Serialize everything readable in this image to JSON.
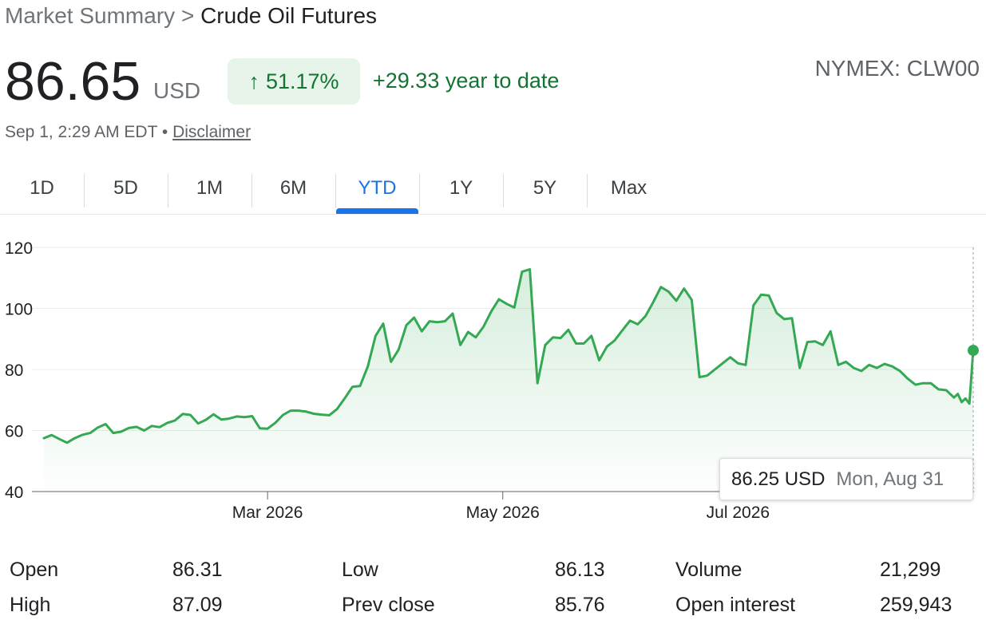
{
  "breadcrumb": {
    "parent": "Market Summary",
    "separator": ">",
    "current": "Crude Oil Futures"
  },
  "quote": {
    "price": "86.65",
    "currency": "USD",
    "change_arrow": "↑",
    "change_percent": "51.17%",
    "ytd_change": "+29.33 year to date",
    "exchange": "NYMEX: CLW00",
    "timestamp": "Sep 1, 2:29 AM EDT •",
    "disclaimer": "Disclaimer"
  },
  "colors": {
    "accent": "#1a73e8",
    "positive": "#137333",
    "line": "#34a853"
  },
  "tabs": [
    {
      "label": "1D",
      "active": false
    },
    {
      "label": "5D",
      "active": false
    },
    {
      "label": "1M",
      "active": false
    },
    {
      "label": "6M",
      "active": false
    },
    {
      "label": "YTD",
      "active": true
    },
    {
      "label": "1Y",
      "active": false
    },
    {
      "label": "5Y",
      "active": false
    },
    {
      "label": "Max",
      "active": false
    }
  ],
  "tooltip": {
    "price": "86.25 USD",
    "date": "Mon, Aug 31"
  },
  "stats": [
    [
      {
        "label": "Open",
        "value": "86.31"
      },
      {
        "label": "Low",
        "value": "86.13"
      },
      {
        "label": "Volume",
        "value": "21,299"
      }
    ],
    [
      {
        "label": "High",
        "value": "87.09"
      },
      {
        "label": "Prev close",
        "value": "85.76"
      },
      {
        "label": "Open interest",
        "value": "259,943"
      }
    ]
  ],
  "chart_data": {
    "type": "area",
    "ylim": [
      40,
      120
    ],
    "yticks": [
      40,
      60,
      80,
      100,
      120
    ],
    "xlim": [
      "2026-01-02",
      "2026-08-31"
    ],
    "xticks": [
      {
        "label": "Mar 2026",
        "date": "2026-03-01"
      },
      {
        "label": "May 2026",
        "date": "2026-05-01"
      },
      {
        "label": "Jul 2026",
        "date": "2026-07-01"
      }
    ],
    "series": [
      {
        "values": [
          [
            "2026-01-02",
            57.5
          ],
          [
            "2026-01-04",
            58.5
          ],
          [
            "2026-01-06",
            57.2
          ],
          [
            "2026-01-08",
            56
          ],
          [
            "2026-01-10",
            57.5
          ],
          [
            "2026-01-12",
            58.6
          ],
          [
            "2026-01-14",
            59.2
          ],
          [
            "2026-01-16",
            61
          ],
          [
            "2026-01-18",
            62.1
          ],
          [
            "2026-01-20",
            59.2
          ],
          [
            "2026-01-22",
            59.6
          ],
          [
            "2026-01-24",
            60.8
          ],
          [
            "2026-01-26",
            61.2
          ],
          [
            "2026-01-28",
            60
          ],
          [
            "2026-01-30",
            61.5
          ],
          [
            "2026-02-01",
            61.1
          ],
          [
            "2026-02-03",
            62.5
          ],
          [
            "2026-02-05",
            63.3
          ],
          [
            "2026-02-07",
            65.4
          ],
          [
            "2026-02-09",
            65.1
          ],
          [
            "2026-02-11",
            62.3
          ],
          [
            "2026-02-13",
            63.5
          ],
          [
            "2026-02-15",
            65.3
          ],
          [
            "2026-02-17",
            63.6
          ],
          [
            "2026-02-19",
            63.9
          ],
          [
            "2026-02-21",
            64.6
          ],
          [
            "2026-02-23",
            64.4
          ],
          [
            "2026-02-25",
            64.7
          ],
          [
            "2026-02-27",
            60.7
          ],
          [
            "2026-03-01",
            60.6
          ],
          [
            "2026-03-03",
            62.5
          ],
          [
            "2026-03-05",
            65.1
          ],
          [
            "2026-03-07",
            66.5
          ],
          [
            "2026-03-09",
            66.5
          ],
          [
            "2026-03-11",
            66.2
          ],
          [
            "2026-03-13",
            65.5
          ],
          [
            "2026-03-15",
            65.2
          ],
          [
            "2026-03-17",
            65
          ],
          [
            "2026-03-19",
            67
          ],
          [
            "2026-03-21",
            70.5
          ],
          [
            "2026-03-23",
            74.3
          ],
          [
            "2026-03-25",
            74.6
          ],
          [
            "2026-03-27",
            81
          ],
          [
            "2026-03-29",
            91
          ],
          [
            "2026-03-31",
            95
          ],
          [
            "2026-04-02",
            82.5
          ],
          [
            "2026-04-04",
            86.5
          ],
          [
            "2026-04-06",
            94.5
          ],
          [
            "2026-04-08",
            97
          ],
          [
            "2026-04-10",
            92.5
          ],
          [
            "2026-04-12",
            95.8
          ],
          [
            "2026-04-14",
            95.5
          ],
          [
            "2026-04-16",
            95.8
          ],
          [
            "2026-04-18",
            98.3
          ],
          [
            "2026-04-20",
            88
          ],
          [
            "2026-04-22",
            92.3
          ],
          [
            "2026-04-24",
            90.5
          ],
          [
            "2026-04-26",
            94
          ],
          [
            "2026-04-28",
            99
          ],
          [
            "2026-04-30",
            103
          ],
          [
            "2026-05-02",
            101.5
          ],
          [
            "2026-05-04",
            100.3
          ],
          [
            "2026-05-06",
            112
          ],
          [
            "2026-05-08",
            112.8
          ],
          [
            "2026-05-10",
            75.5
          ],
          [
            "2026-05-12",
            88
          ],
          [
            "2026-05-14",
            90.5
          ],
          [
            "2026-05-16",
            90.3
          ],
          [
            "2026-05-18",
            93
          ],
          [
            "2026-05-20",
            88.5
          ],
          [
            "2026-05-22",
            88.5
          ],
          [
            "2026-05-24",
            91
          ],
          [
            "2026-05-26",
            83
          ],
          [
            "2026-05-28",
            87.5
          ],
          [
            "2026-05-30",
            89.5
          ],
          [
            "2026-06-01",
            92.8
          ],
          [
            "2026-06-03",
            96
          ],
          [
            "2026-06-05",
            94.8
          ],
          [
            "2026-06-07",
            97.5
          ],
          [
            "2026-06-09",
            102
          ],
          [
            "2026-06-11",
            107
          ],
          [
            "2026-06-13",
            105.5
          ],
          [
            "2026-06-15",
            102.5
          ],
          [
            "2026-06-17",
            106.5
          ],
          [
            "2026-06-19",
            102.8
          ],
          [
            "2026-06-21",
            77.5
          ],
          [
            "2026-06-23",
            78
          ],
          [
            "2026-06-25",
            80
          ],
          [
            "2026-06-27",
            82
          ],
          [
            "2026-06-29",
            84
          ],
          [
            "2026-07-01",
            82
          ],
          [
            "2026-07-03",
            81.5
          ],
          [
            "2026-07-05",
            101
          ],
          [
            "2026-07-07",
            104.5
          ],
          [
            "2026-07-09",
            104.2
          ],
          [
            "2026-07-11",
            98.5
          ],
          [
            "2026-07-13",
            96.5
          ],
          [
            "2026-07-15",
            96.8
          ],
          [
            "2026-07-17",
            80.5
          ],
          [
            "2026-07-19",
            89
          ],
          [
            "2026-07-21",
            89.2
          ],
          [
            "2026-07-23",
            88
          ],
          [
            "2026-07-25",
            92.5
          ],
          [
            "2026-07-27",
            81.5
          ],
          [
            "2026-07-29",
            82.5
          ],
          [
            "2026-07-31",
            80.5
          ],
          [
            "2026-08-02",
            79.5
          ],
          [
            "2026-08-04",
            81.5
          ],
          [
            "2026-08-06",
            80.5
          ],
          [
            "2026-08-08",
            81.8
          ],
          [
            "2026-08-10",
            81
          ],
          [
            "2026-08-12",
            79.5
          ],
          [
            "2026-08-14",
            77
          ],
          [
            "2026-08-16",
            75
          ],
          [
            "2026-08-18",
            75.5
          ],
          [
            "2026-08-20",
            75.5
          ],
          [
            "2026-08-22",
            73.5
          ],
          [
            "2026-08-24",
            73.2
          ],
          [
            "2026-08-26",
            70.8
          ],
          [
            "2026-08-27",
            72
          ],
          [
            "2026-08-28",
            69.3
          ],
          [
            "2026-08-29",
            70.5
          ],
          [
            "2026-08-30",
            68.8
          ],
          [
            "2026-08-31",
            86.25
          ]
        ]
      }
    ]
  }
}
